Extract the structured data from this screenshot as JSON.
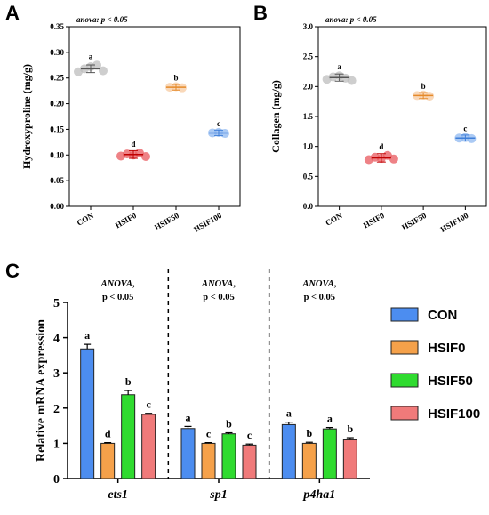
{
  "panels": {
    "A": "A",
    "B": "B",
    "C": "C"
  },
  "chart_data": [
    {
      "id": "A",
      "type": "scatter",
      "annotation_text": "anova: p < 0.05",
      "ylabel": "Hydroxyproline (mg/g)",
      "ylim": [
        0,
        0.35
      ],
      "yticks": [
        "0.00",
        "0.05",
        "0.10",
        "0.15",
        "0.20",
        "0.25",
        "0.30",
        "0.35"
      ],
      "categories": [
        "CON",
        "HSIF0",
        "HSIF50",
        "HSIF100"
      ],
      "colors": [
        "#bdbdbd",
        "#e8585e",
        "#f7cba1",
        "#8fb8f0"
      ],
      "mean_colors": [
        "#555555",
        "#c00000",
        "#e58a2a",
        "#3f7fd9"
      ],
      "means": [
        0.268,
        0.101,
        0.232,
        0.143
      ],
      "sd": [
        0.004,
        0.004,
        0.002,
        0.002
      ],
      "points": [
        [
          0.262,
          0.268,
          0.272,
          0.275,
          0.264
        ],
        [
          0.098,
          0.102,
          0.1,
          0.104,
          0.097
        ],
        [
          0.232,
          0.233,
          0.231
        ],
        [
          0.143,
          0.144,
          0.142
        ]
      ],
      "sig": [
        "a",
        "d",
        "b",
        "c"
      ]
    },
    {
      "id": "B",
      "type": "scatter",
      "annotation_text": "anova: p < 0.05",
      "ylabel": "Collagen (mg/g)",
      "ylim": [
        0,
        3.0
      ],
      "yticks": [
        "0.0",
        "0.5",
        "1.0",
        "1.5",
        "2.0",
        "2.5",
        "3.0"
      ],
      "categories": [
        "CON",
        "HSIF0",
        "HSIF50",
        "HSIF100"
      ],
      "colors": [
        "#bdbdbd",
        "#e8585e",
        "#f7cba1",
        "#8fb8f0"
      ],
      "mean_colors": [
        "#555555",
        "#c00000",
        "#e58a2a",
        "#3f7fd9"
      ],
      "means": [
        2.15,
        0.81,
        1.85,
        1.14
      ],
      "sd": [
        0.03,
        0.04,
        0.02,
        0.02
      ],
      "points": [
        [
          2.12,
          2.16,
          2.18,
          2.14,
          2.1
        ],
        [
          0.78,
          0.82,
          0.8,
          0.85,
          0.79
        ],
        [
          1.85,
          1.86,
          1.84
        ],
        [
          1.14,
          1.15,
          1.13
        ]
      ],
      "sig": [
        "a",
        "d",
        "b",
        "c"
      ]
    },
    {
      "id": "C",
      "type": "bar",
      "ylabel": "Relative mRNA expression",
      "ylim": [
        0,
        5
      ],
      "yticks": [
        "0",
        "1",
        "2",
        "3",
        "4",
        "5"
      ],
      "categories": [
        "ets1",
        "sp1",
        "p4ha1"
      ],
      "anova_labels": [
        {
          "name": "ANOVA",
          "rest": ",",
          "p": "p < 0.05"
        },
        {
          "name": "ANOVA",
          "rest": ",",
          "p": "p < 0.05"
        },
        {
          "name": "ANOVA",
          "rest": ",",
          "p": "p < 0.05"
        }
      ],
      "series": [
        {
          "name": "CON",
          "color": "#4c8df0",
          "values": [
            3.68,
            1.42,
            1.53
          ],
          "err": [
            0.13,
            0.06,
            0.07
          ],
          "sig": [
            "a",
            "a",
            "a"
          ]
        },
        {
          "name": "HSIF0",
          "color": "#f5a14a",
          "values": [
            1.0,
            1.0,
            1.0
          ],
          "err": [
            0.02,
            0.02,
            0.03
          ],
          "sig": [
            "d",
            "c",
            "b"
          ]
        },
        {
          "name": "HSIF50",
          "color": "#2fdb2f",
          "values": [
            2.38,
            1.27,
            1.41
          ],
          "err": [
            0.12,
            0.03,
            0.04
          ],
          "sig": [
            "b",
            "b",
            "a"
          ]
        },
        {
          "name": "HSIF100",
          "color": "#f07a7a",
          "values": [
            1.82,
            0.95,
            1.1
          ],
          "err": [
            0.03,
            0.03,
            0.06
          ],
          "sig": [
            "c",
            "c",
            "b"
          ]
        }
      ]
    }
  ]
}
